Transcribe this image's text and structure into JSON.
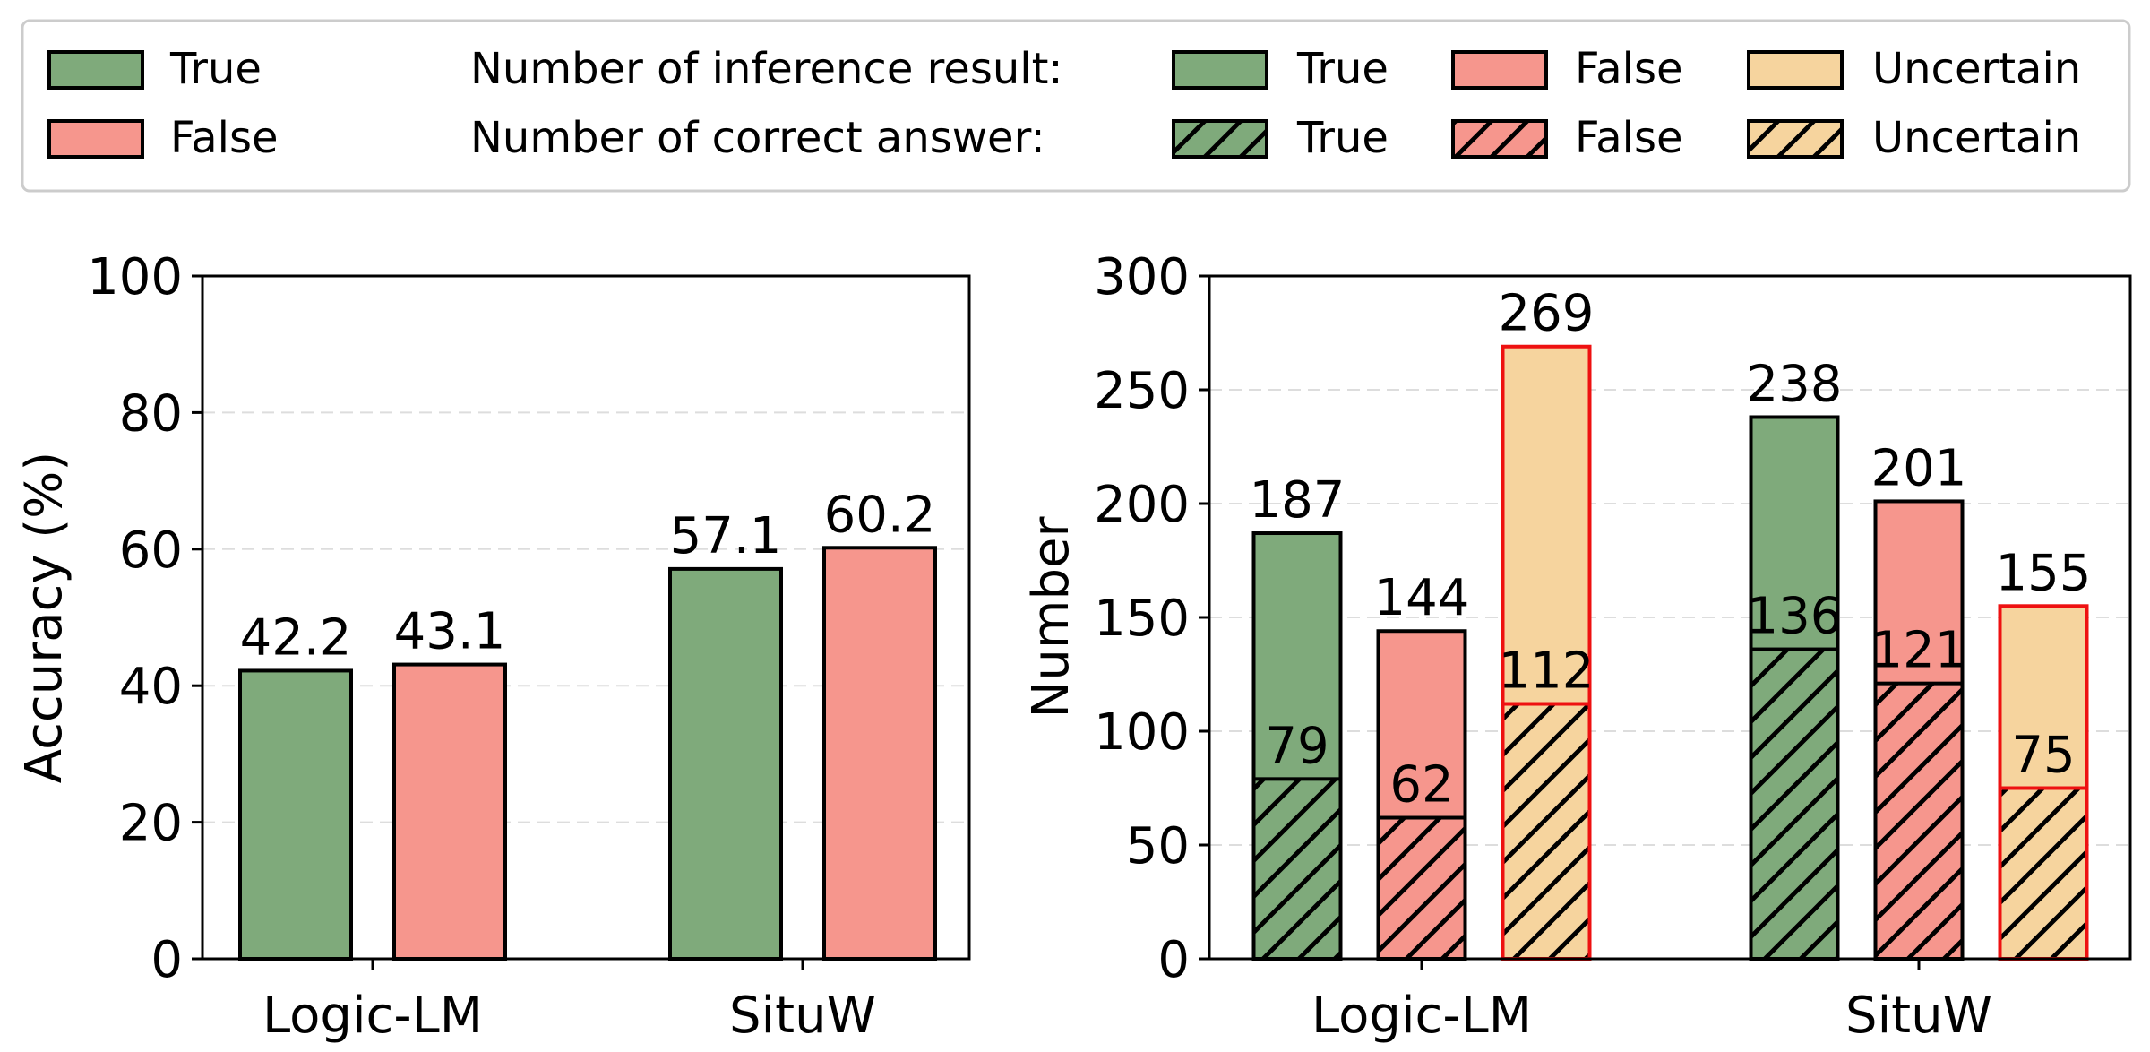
{
  "colors": {
    "true": "#7faa7b",
    "false": "#f6968d",
    "uncertain": "#f6d49e",
    "highlight": "#ee1111",
    "edge": "#000000",
    "grid": "#dddddd"
  },
  "legend": {
    "left_items": [
      {
        "label": "True",
        "color_key": "true",
        "hatched": false
      },
      {
        "label": "False",
        "color_key": "false",
        "hatched": false
      }
    ],
    "row1_title": "Number of inference result:",
    "row2_title": "Number of correct answer:",
    "row1_items": [
      {
        "label": "True",
        "color_key": "true",
        "hatched": false
      },
      {
        "label": "False",
        "color_key": "false",
        "hatched": false
      },
      {
        "label": "Uncertain",
        "color_key": "uncertain",
        "hatched": false
      }
    ],
    "row2_items": [
      {
        "label": "True",
        "color_key": "true",
        "hatched": true
      },
      {
        "label": "False",
        "color_key": "false",
        "hatched": true
      },
      {
        "label": "Uncertain",
        "color_key": "uncertain",
        "hatched": true
      }
    ]
  },
  "chart_data": [
    {
      "type": "bar",
      "categories": [
        "Logic-LM",
        "SituW"
      ],
      "series": [
        {
          "name": "True",
          "values": [
            42.2,
            57.1
          ]
        },
        {
          "name": "False",
          "values": [
            43.1,
            60.2
          ]
        }
      ],
      "value_labels": [
        [
          "42.2",
          "57.1"
        ],
        [
          "43.1",
          "60.2"
        ]
      ],
      "ylabel": "Accuracy (%)",
      "ylim": [
        0,
        100
      ],
      "yticks": [
        0,
        20,
        40,
        60,
        80,
        100
      ],
      "grid": true
    },
    {
      "type": "bar",
      "categories": [
        "Logic-LM",
        "SituW"
      ],
      "series": [
        {
          "name": "True",
          "values": [
            187,
            238
          ],
          "correct": [
            79,
            136
          ]
        },
        {
          "name": "False",
          "values": [
            144,
            201
          ],
          "correct": [
            62,
            121
          ]
        },
        {
          "name": "Uncertain",
          "values": [
            269,
            155
          ],
          "correct": [
            112,
            75
          ]
        }
      ],
      "ylabel": "Number",
      "ylim": [
        0,
        300
      ],
      "yticks": [
        0,
        50,
        100,
        150,
        200,
        250,
        300
      ],
      "grid": true
    }
  ]
}
